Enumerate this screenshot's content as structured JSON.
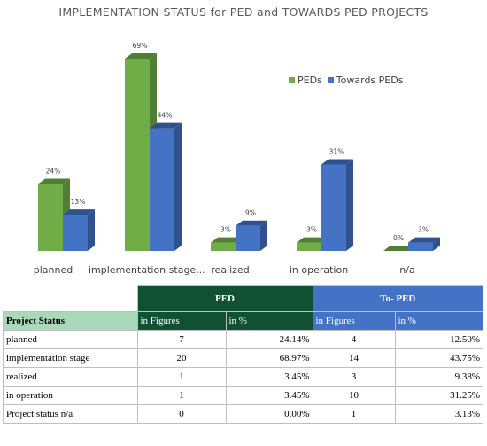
{
  "chart_data": {
    "type": "bar",
    "title": "IMPLEMENTATION STATUS for PED and TOWARDS PED PROJECTS",
    "categories": [
      "planned",
      "implementation stage...",
      "realized",
      "in operation",
      "n/a"
    ],
    "series": [
      {
        "name": "PEDs",
        "values": [
          24,
          69,
          3,
          3,
          0
        ],
        "labels": [
          "24%",
          "69%",
          "3%",
          "3%",
          "0%"
        ],
        "color": "#70ad47"
      },
      {
        "name": "Towards PEDs",
        "values": [
          13,
          44,
          9,
          31,
          3
        ],
        "labels": [
          "13%",
          "44%",
          "9%",
          "31%",
          "3%"
        ],
        "color": "#4472c4"
      }
    ],
    "ylim": [
      0,
      69
    ],
    "legend": "top-right",
    "grid": false
  },
  "table": {
    "group_headers": [
      "PED",
      "To- PED"
    ],
    "row_header": "Project Status",
    "sub_headers": [
      "in Figures",
      "in %",
      "in Figures",
      "in %"
    ],
    "rows": [
      {
        "status": "planned",
        "ped_fig": "7",
        "ped_pct": "24.14%",
        "tped_fig": "4",
        "tped_pct": "12.50%"
      },
      {
        "status": "implementation stage",
        "ped_fig": "20",
        "ped_pct": "68.97%",
        "tped_fig": "14",
        "tped_pct": "43.75%"
      },
      {
        "status": "realized",
        "ped_fig": "1",
        "ped_pct": "3.45%",
        "tped_fig": "3",
        "tped_pct": "9.38%"
      },
      {
        "status": "in operation",
        "ped_fig": "1",
        "ped_pct": "3.45%",
        "tped_fig": "10",
        "tped_pct": "31.25%"
      },
      {
        "status": "Project status n/a",
        "ped_fig": "0",
        "ped_pct": "0.00%",
        "tped_fig": "1",
        "tped_pct": "3.13%"
      }
    ]
  }
}
